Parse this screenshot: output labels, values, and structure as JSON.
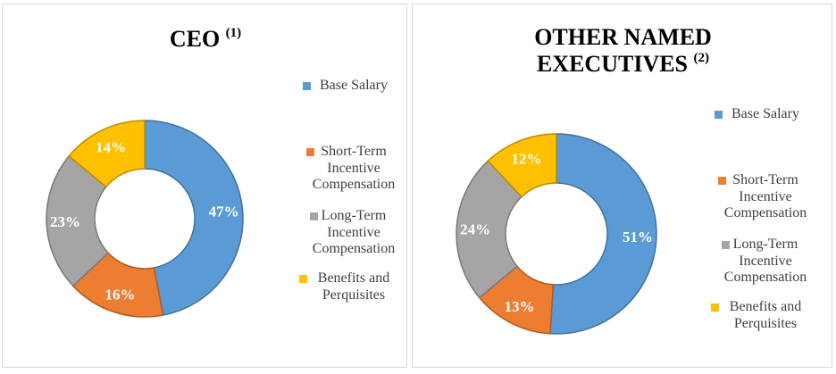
{
  "colors": {
    "base_salary": "#5b9bd5",
    "short_term": "#ed7d31",
    "long_term": "#a5a5a5",
    "benefits": "#ffc000"
  },
  "chart_data": [
    {
      "type": "pie",
      "subtype": "donut",
      "title": "CEO",
      "title_note": "(1)",
      "legend_position": "right",
      "categories": [
        "Base Salary",
        "Short-Term Incentive Compensation",
        "Long-Term Incentive Compensation",
        "Benefits and Perquisites"
      ],
      "legend_lines": [
        [
          "Base Salary"
        ],
        [
          "Short-Term",
          "Incentive",
          "Compensation"
        ],
        [
          "Long-Term",
          "Incentive",
          "Compensation"
        ],
        [
          "Benefits and",
          "Perquisites"
        ]
      ],
      "values": [
        47,
        16,
        23,
        14
      ],
      "labels": [
        "47%",
        "16%",
        "23%",
        "14%"
      ],
      "colors": [
        "#5b9bd5",
        "#ed7d31",
        "#a5a5a5",
        "#ffc000"
      ],
      "borders": [
        "#41719c",
        "#ae5a21",
        "#787878",
        "#bc8c00"
      ]
    },
    {
      "type": "pie",
      "subtype": "donut",
      "title": "OTHER NAMED EXECUTIVES",
      "title_lines": [
        "OTHER NAMED",
        "EXECUTIVES"
      ],
      "title_note": "(2)",
      "legend_position": "right",
      "categories": [
        "Base Salary",
        "Short-Term Incentive Compensation",
        "Long-Term Incentive Compensation",
        "Benefits and Perquisites"
      ],
      "legend_lines": [
        [
          "Base Salary"
        ],
        [
          "Short-Term",
          "Incentive",
          "Compensation"
        ],
        [
          "Long-Term",
          "Incentive",
          "Compensation"
        ],
        [
          "Benefits and",
          "Perquisites"
        ]
      ],
      "values": [
        51,
        13,
        24,
        12
      ],
      "labels": [
        "51%",
        "13%",
        "24%",
        "12%"
      ],
      "colors": [
        "#5b9bd5",
        "#ed7d31",
        "#a5a5a5",
        "#ffc000"
      ],
      "borders": [
        "#41719c",
        "#ae5a21",
        "#787878",
        "#bc8c00"
      ]
    }
  ]
}
